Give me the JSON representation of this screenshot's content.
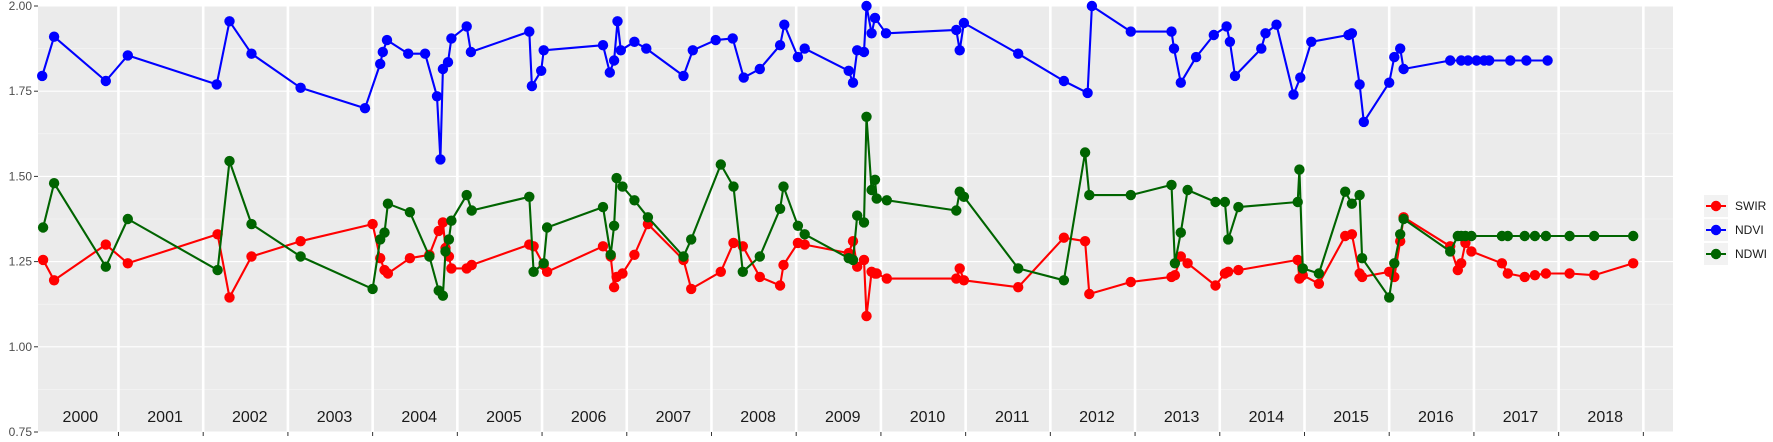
{
  "chart_data": {
    "type": "line",
    "title": "",
    "xlabel": "",
    "ylabel": "",
    "xlim": [
      1999.55,
      2018.85
    ],
    "ylim": [
      0.75,
      2.0
    ],
    "y_ticks": [
      0.75,
      1.0,
      1.25,
      1.5,
      1.75,
      2.0
    ],
    "y_tick_labels": [
      "0.75",
      "1.00",
      "1.25",
      "1.50",
      "1.75",
      "2.00"
    ],
    "year_boundaries": [
      2000.5,
      2001.5,
      2002.5,
      2003.5,
      2004.5,
      2005.5,
      2006.5,
      2007.5,
      2008.5,
      2009.5,
      2010.5,
      2011.5,
      2012.5,
      2013.5,
      2014.5,
      2015.5,
      2016.5,
      2017.5,
      2018.5
    ],
    "year_labels": [
      {
        "x": 2000.05,
        "label": "2000"
      },
      {
        "x": 2001.05,
        "label": "2001"
      },
      {
        "x": 2002.05,
        "label": "2002"
      },
      {
        "x": 2003.05,
        "label": "2003"
      },
      {
        "x": 2004.05,
        "label": "2004"
      },
      {
        "x": 2005.05,
        "label": "2005"
      },
      {
        "x": 2006.05,
        "label": "2006"
      },
      {
        "x": 2007.05,
        "label": "2007"
      },
      {
        "x": 2008.05,
        "label": "2008"
      },
      {
        "x": 2009.05,
        "label": "2009"
      },
      {
        "x": 2010.05,
        "label": "2010"
      },
      {
        "x": 2011.05,
        "label": "2011"
      },
      {
        "x": 2012.05,
        "label": "2012"
      },
      {
        "x": 2013.05,
        "label": "2013"
      },
      {
        "x": 2014.05,
        "label": "2014"
      },
      {
        "x": 2015.05,
        "label": "2015"
      },
      {
        "x": 2016.05,
        "label": "2016"
      },
      {
        "x": 2017.05,
        "label": "2017"
      },
      {
        "x": 2018.05,
        "label": "2018"
      }
    ],
    "grid": true,
    "legend_position": "right",
    "series": [
      {
        "name": "SWIR",
        "color": "#ff0000",
        "x": [
          1999.61,
          1999.74,
          2000.35,
          2000.61,
          2001.67,
          2001.81,
          2002.07,
          2002.65,
          2003.5,
          2003.59,
          2003.64,
          2003.68,
          2003.94,
          2004.17,
          2004.28,
          2004.33,
          2004.36,
          2004.4,
          2004.43,
          2004.61,
          2004.67,
          2005.35,
          2005.4,
          2005.52,
          2005.56,
          2006.22,
          2006.31,
          2006.35,
          2006.38,
          2006.45,
          2006.59,
          2006.75,
          2007.17,
          2007.26,
          2007.61,
          2007.76,
          2007.87,
          2008.07,
          2008.31,
          2008.35,
          2008.52,
          2008.6,
          2009.12,
          2009.17,
          2009.22,
          2009.3,
          2009.33,
          2009.39,
          2009.43,
          2009.45,
          2009.57,
          2010.39,
          2010.43,
          2010.48,
          2011.12,
          2011.66,
          2011.91,
          2011.96,
          2012.45,
          2012.93,
          2012.97,
          2013.04,
          2013.12,
          2013.45,
          2013.56,
          2013.6,
          2013.72,
          2014.42,
          2014.44,
          2014.48,
          2014.67,
          2014.98,
          2015.06,
          2015.15,
          2015.18,
          2015.5,
          2015.56,
          2015.63,
          2015.67,
          2016.22,
          2016.31,
          2016.35,
          2016.4,
          2016.47,
          2016.83,
          2016.9,
          2017.1,
          2017.22,
          2017.35,
          2017.63,
          2017.92,
          2018.38
        ],
        "y": [
          1.255,
          1.195,
          1.3,
          1.245,
          1.33,
          1.145,
          1.265,
          1.31,
          1.36,
          1.26,
          1.225,
          1.215,
          1.26,
          1.27,
          1.34,
          1.365,
          1.29,
          1.265,
          1.23,
          1.23,
          1.24,
          1.3,
          1.295,
          1.24,
          1.22,
          1.295,
          1.265,
          1.175,
          1.205,
          1.215,
          1.27,
          1.36,
          1.255,
          1.17,
          1.22,
          1.305,
          1.295,
          1.205,
          1.18,
          1.24,
          1.305,
          1.3,
          1.275,
          1.31,
          1.235,
          1.255,
          1.09,
          1.22,
          1.215,
          1.215,
          1.2,
          1.2,
          1.23,
          1.195,
          1.175,
          1.32,
          1.31,
          1.155,
          1.19,
          1.205,
          1.21,
          1.265,
          1.245,
          1.18,
          1.215,
          1.22,
          1.225,
          1.255,
          1.2,
          1.21,
          1.185,
          1.325,
          1.33,
          1.215,
          1.205,
          1.22,
          1.205,
          1.31,
          1.38,
          1.295,
          1.225,
          1.245,
          1.305,
          1.28,
          1.245,
          1.215,
          1.205,
          1.21,
          1.215,
          1.215,
          1.21,
          1.245
        ]
      },
      {
        "name": "NDVI",
        "color": "#0000ff",
        "x": [
          1999.6,
          1999.74,
          2000.35,
          2000.61,
          2001.66,
          2001.81,
          2002.07,
          2002.65,
          2003.41,
          2003.59,
          2003.62,
          2003.67,
          2003.92,
          2004.12,
          2004.26,
          2004.3,
          2004.33,
          2004.39,
          2004.43,
          2004.61,
          2004.66,
          2005.35,
          2005.38,
          2005.49,
          2005.52,
          2006.22,
          2006.3,
          2006.35,
          2006.39,
          2006.43,
          2006.59,
          2006.73,
          2007.17,
          2007.28,
          2007.55,
          2007.75,
          2007.88,
          2008.07,
          2008.31,
          2008.36,
          2008.52,
          2008.6,
          2009.12,
          2009.17,
          2009.22,
          2009.3,
          2009.33,
          2009.39,
          2009.43,
          2009.56,
          2010.39,
          2010.43,
          2010.48,
          2011.12,
          2011.66,
          2011.94,
          2011.99,
          2012.45,
          2012.93,
          2012.96,
          2013.04,
          2013.22,
          2013.43,
          2013.58,
          2013.62,
          2013.68,
          2013.99,
          2014.04,
          2014.17,
          2014.37,
          2014.45,
          2014.58,
          2015.02,
          2015.06,
          2015.15,
          2015.2,
          2015.5,
          2015.56,
          2015.63,
          2015.67,
          2016.22,
          2016.35,
          2016.43,
          2016.53,
          2016.62,
          2016.68,
          2016.93,
          2017.12,
          2017.37
        ],
        "y": [
          1.795,
          1.91,
          1.78,
          1.855,
          1.77,
          1.955,
          1.86,
          1.76,
          1.7,
          1.83,
          1.865,
          1.9,
          1.86,
          1.86,
          1.735,
          1.55,
          1.815,
          1.835,
          1.905,
          1.94,
          1.865,
          1.925,
          1.765,
          1.81,
          1.87,
          1.885,
          1.805,
          1.84,
          1.955,
          1.87,
          1.895,
          1.875,
          1.795,
          1.87,
          1.9,
          1.905,
          1.79,
          1.815,
          1.885,
          1.945,
          1.85,
          1.875,
          1.81,
          1.775,
          1.87,
          1.865,
          2.0,
          1.92,
          1.965,
          1.92,
          1.93,
          1.87,
          1.95,
          1.86,
          1.78,
          1.745,
          2.0,
          1.925,
          1.925,
          1.875,
          1.775,
          1.85,
          1.915,
          1.94,
          1.895,
          1.795,
          1.875,
          1.92,
          1.945,
          1.74,
          1.79,
          1.895,
          1.915,
          1.92,
          1.77,
          1.66,
          1.775,
          1.85,
          1.875,
          1.815,
          1.84,
          1.84,
          1.84,
          1.84,
          1.84,
          1.84,
          1.84,
          1.84,
          1.84
        ]
      },
      {
        "name": "NDWI",
        "color": "#006400",
        "x": [
          1999.61,
          1999.74,
          2000.35,
          2000.61,
          2001.67,
          2001.81,
          2002.07,
          2002.65,
          2003.5,
          2003.59,
          2003.64,
          2003.68,
          2003.94,
          2004.17,
          2004.28,
          2004.33,
          2004.36,
          2004.4,
          2004.43,
          2004.61,
          2004.67,
          2005.35,
          2005.4,
          2005.52,
          2005.56,
          2006.22,
          2006.31,
          2006.35,
          2006.38,
          2006.45,
          2006.59,
          2006.75,
          2007.17,
          2007.26,
          2007.61,
          2007.76,
          2007.87,
          2008.07,
          2008.31,
          2008.35,
          2008.52,
          2008.6,
          2009.12,
          2009.17,
          2009.22,
          2009.3,
          2009.33,
          2009.39,
          2009.43,
          2009.45,
          2009.57,
          2010.39,
          2010.43,
          2010.48,
          2011.12,
          2011.66,
          2011.91,
          2011.96,
          2012.45,
          2012.93,
          2012.97,
          2013.04,
          2013.12,
          2013.45,
          2013.56,
          2013.6,
          2013.72,
          2014.42,
          2014.44,
          2014.48,
          2014.67,
          2014.98,
          2015.06,
          2015.15,
          2015.18,
          2015.5,
          2015.56,
          2015.63,
          2015.67,
          2016.22,
          2016.31,
          2016.35,
          2016.4,
          2016.47,
          2016.83,
          2016.9,
          2017.1,
          2017.22,
          2017.35,
          2017.63,
          2017.92,
          2018.38
        ],
        "y": [
          1.35,
          1.48,
          1.235,
          1.375,
          1.225,
          1.545,
          1.36,
          1.265,
          1.17,
          1.315,
          1.335,
          1.42,
          1.395,
          1.265,
          1.165,
          1.15,
          1.28,
          1.315,
          1.37,
          1.445,
          1.4,
          1.44,
          1.22,
          1.245,
          1.35,
          1.41,
          1.27,
          1.355,
          1.495,
          1.47,
          1.43,
          1.38,
          1.265,
          1.315,
          1.535,
          1.47,
          1.22,
          1.265,
          1.405,
          1.47,
          1.355,
          1.33,
          1.26,
          1.255,
          1.385,
          1.365,
          1.675,
          1.46,
          1.49,
          1.435,
          1.43,
          1.4,
          1.455,
          1.44,
          1.23,
          1.195,
          1.57,
          1.445,
          1.445,
          1.475,
          1.245,
          1.335,
          1.46,
          1.425,
          1.425,
          1.315,
          1.41,
          1.425,
          1.52,
          1.23,
          1.215,
          1.455,
          1.42,
          1.445,
          1.26,
          1.145,
          1.245,
          1.33,
          1.375,
          1.28,
          1.325,
          1.325,
          1.325,
          1.325,
          1.325,
          1.325,
          1.325,
          1.325,
          1.325,
          1.325,
          1.325,
          1.325
        ]
      }
    ]
  }
}
